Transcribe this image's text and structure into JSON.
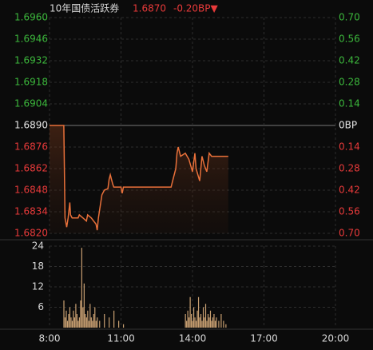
{
  "chart_data": [
    {
      "type": "line",
      "title": "10年国债活跃券",
      "last": "1.6870",
      "change": "-0.20BP▼",
      "color": "#e8703a",
      "up_color": "#3cb83c",
      "down_color": "#e83a3a",
      "base_color": "#e6e6e6",
      "x": [
        8.0,
        8.6,
        8.65,
        8.72,
        8.78,
        8.85,
        8.88,
        8.95,
        9.2,
        9.25,
        9.4,
        9.55,
        9.6,
        9.75,
        9.95,
        10.0,
        10.05,
        10.2,
        10.3,
        10.45,
        10.5,
        10.55,
        10.65,
        10.7,
        11.0,
        11.05,
        11.1,
        13.1,
        13.2,
        13.3,
        13.35,
        13.4,
        13.5,
        13.7,
        13.85,
        14.0,
        14.1,
        14.15,
        14.3,
        14.4,
        14.5,
        14.6,
        14.7,
        14.8,
        15.5
      ],
      "values": [
        1.689,
        1.689,
        1.683,
        1.6824,
        1.683,
        1.684,
        1.6832,
        1.683,
        1.683,
        1.6832,
        1.683,
        1.6828,
        1.6832,
        1.683,
        1.6826,
        1.6822,
        1.683,
        1.6845,
        1.6848,
        1.6849,
        1.6855,
        1.6858,
        1.6852,
        1.685,
        1.685,
        1.6846,
        1.685,
        1.685,
        1.6856,
        1.6862,
        1.6872,
        1.6876,
        1.687,
        1.6872,
        1.6868,
        1.686,
        1.6872,
        1.6862,
        1.6854,
        1.687,
        1.6864,
        1.686,
        1.6872,
        1.687,
        1.687
      ],
      "xlim": [
        8,
        20
      ],
      "ylim": [
        1.682,
        1.696
      ],
      "yticks": [
        {
          "value": 1.696,
          "label": "1.6960"
        },
        {
          "value": 1.6946,
          "label": "1.6946"
        },
        {
          "value": 1.6932,
          "label": "1.6932"
        },
        {
          "value": 1.6918,
          "label": "1.6918"
        },
        {
          "value": 1.6904,
          "label": "1.6904"
        },
        {
          "value": 1.689,
          "label": "1.6890"
        },
        {
          "value": 1.6876,
          "label": "1.6876"
        },
        {
          "value": 1.6862,
          "label": "1.6862"
        },
        {
          "value": 1.6848,
          "label": "1.6848"
        },
        {
          "value": 1.6834,
          "label": "1.6834"
        },
        {
          "value": 1.682,
          "label": "1.6820"
        }
      ],
      "y2lim": [
        -0.7,
        0.7
      ],
      "y2ticks": [
        {
          "value": 0.7,
          "label": "0.70"
        },
        {
          "value": 0.56,
          "label": "0.56"
        },
        {
          "value": 0.42,
          "label": "0.42"
        },
        {
          "value": 0.28,
          "label": "0.28"
        },
        {
          "value": 0.14,
          "label": "0.14"
        },
        {
          "value": 0,
          "label": "0BP"
        },
        {
          "value": -0.14,
          "label": "0.14"
        },
        {
          "value": -0.28,
          "label": "0.28"
        },
        {
          "value": -0.42,
          "label": "0.42"
        },
        {
          "value": -0.56,
          "label": "0.56"
        },
        {
          "value": -0.7,
          "label": "0.70"
        }
      ],
      "grid": true
    },
    {
      "type": "bar",
      "color": "#c9a072",
      "x": [
        8.6,
        8.65,
        8.7,
        8.75,
        8.8,
        8.85,
        8.9,
        8.95,
        9.0,
        9.05,
        9.1,
        9.15,
        9.2,
        9.25,
        9.3,
        9.35,
        9.4,
        9.45,
        9.5,
        9.55,
        9.6,
        9.65,
        9.7,
        9.75,
        9.8,
        9.85,
        9.9,
        9.95,
        10.0,
        10.1,
        10.3,
        10.5,
        10.7,
        10.9,
        11.1,
        13.7,
        13.75,
        13.8,
        13.85,
        13.9,
        13.95,
        14.0,
        14.05,
        14.1,
        14.15,
        14.2,
        14.25,
        14.3,
        14.35,
        14.4,
        14.45,
        14.5,
        14.55,
        14.6,
        14.65,
        14.7,
        14.75,
        14.8,
        14.85,
        14.9,
        14.95,
        15.0,
        15.1,
        15.2,
        15.3,
        15.4
      ],
      "values": [
        8,
        3,
        5,
        2,
        4,
        6,
        3,
        2,
        5,
        3,
        7,
        4,
        2,
        3,
        8,
        23.5,
        6,
        13,
        4,
        3,
        5,
        2,
        7,
        3,
        2,
        4,
        6,
        2,
        3,
        2,
        4,
        3,
        5,
        2,
        1,
        4,
        2,
        5,
        3,
        9,
        4,
        2,
        6,
        3,
        2,
        5,
        9,
        3,
        4,
        2,
        6,
        3,
        7,
        2,
        4,
        3,
        5,
        2,
        3,
        4,
        2,
        3,
        2,
        4,
        2,
        1
      ],
      "xlim": [
        8,
        20
      ],
      "xticks": [
        {
          "value": 8,
          "label": "8:00"
        },
        {
          "value": 11,
          "label": "11:00"
        },
        {
          "value": 14,
          "label": "14:00"
        },
        {
          "value": 17,
          "label": "17:00"
        },
        {
          "value": 20,
          "label": "20:00"
        }
      ],
      "ylim": [
        0,
        24
      ],
      "yticks": [
        24,
        18,
        12,
        6
      ],
      "grid": true
    }
  ]
}
